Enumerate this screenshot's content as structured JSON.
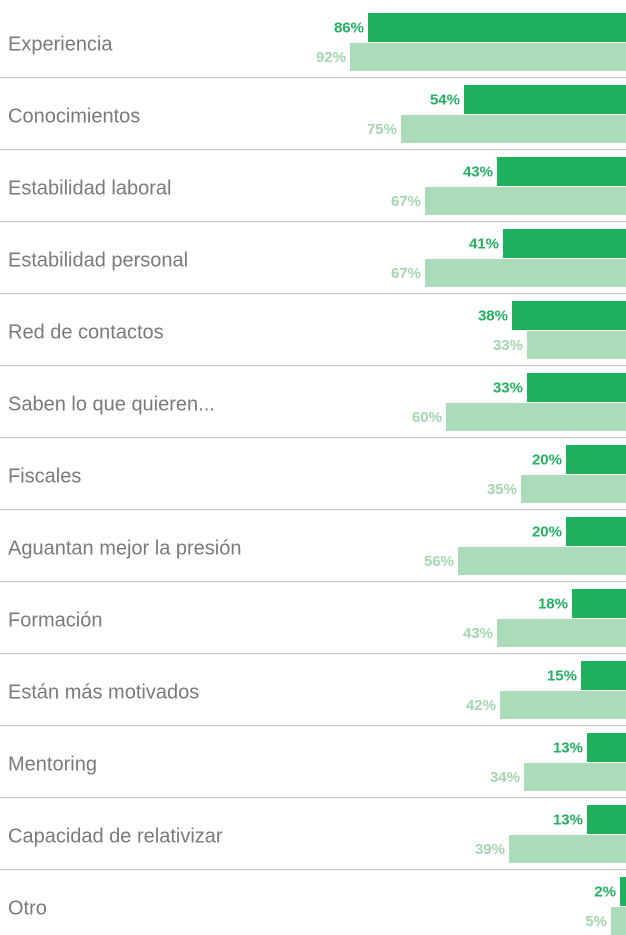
{
  "chart_data": {
    "type": "bar",
    "orientation": "horizontal",
    "categories": [
      "Experiencia",
      "Conocimientos",
      "Estabilidad laboral",
      "Estabilidad personal",
      "Red de contactos",
      "Saben lo que quieren...",
      "Fiscales",
      "Aguantan mejor la presión",
      "Formación",
      "Están más motivados",
      "Mentoring",
      "Capacidad de relativizar",
      "Otro"
    ],
    "series": [
      {
        "color": "#20b15f",
        "values": [
          86,
          54,
          43,
          41,
          38,
          33,
          20,
          20,
          18,
          15,
          13,
          13,
          2
        ],
        "value_labels": [
          "86%",
          "54%",
          "43%",
          "41%",
          "38%",
          "33%",
          "20%",
          "20%",
          "18%",
          "15%",
          "13%",
          "13%",
          "2%"
        ]
      },
      {
        "color": "#acdbb9",
        "values": [
          92,
          75,
          67,
          67,
          33,
          60,
          35,
          56,
          43,
          42,
          34,
          39,
          5
        ],
        "value_labels": [
          "92%",
          "75%",
          "67%",
          "67%",
          "33%",
          "60%",
          "35%",
          "56%",
          "43%",
          "42%",
          "34%",
          "39%",
          "5%"
        ]
      }
    ]
  }
}
